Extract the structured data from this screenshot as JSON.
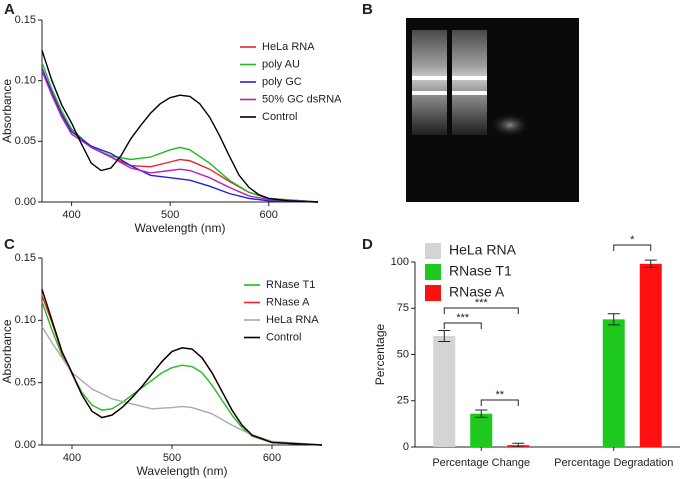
{
  "panels": [
    "A",
    "B",
    "C",
    "D"
  ],
  "chart_data": [
    {
      "type": "line",
      "xlabel": "Wavelength (nm)",
      "ylabel": "Absorbance",
      "xlim": [
        370,
        650
      ],
      "xticks": [
        400,
        500,
        600
      ],
      "ylim": [
        0,
        0.15
      ],
      "yticks": [
        {
          "value": 0,
          "label": "0.00"
        },
        0.05,
        {
          "value": 0.1,
          "label": "0.10"
        },
        0.15
      ],
      "legend": "upper right",
      "series": [
        {
          "name": "HeLa RNA",
          "color": "#e8262a",
          "x": [
            370,
            380,
            390,
            400,
            420,
            440,
            460,
            480,
            500,
            510,
            520,
            540,
            560,
            580,
            600,
            650
          ],
          "values": [
            0.11,
            0.09,
            0.073,
            0.06,
            0.045,
            0.037,
            0.03,
            0.029,
            0.033,
            0.035,
            0.034,
            0.027,
            0.017,
            0.008,
            0.003,
            0
          ]
        },
        {
          "name": "poly AU",
          "color": "#22bb22",
          "x": [
            370,
            380,
            390,
            400,
            420,
            440,
            460,
            480,
            500,
            510,
            520,
            540,
            560,
            580,
            600,
            650
          ],
          "values": [
            0.115,
            0.093,
            0.075,
            0.06,
            0.045,
            0.038,
            0.035,
            0.037,
            0.043,
            0.045,
            0.043,
            0.032,
            0.018,
            0.008,
            0.003,
            0
          ]
        },
        {
          "name": "poly GC",
          "color": "#2222dd",
          "x": [
            370,
            380,
            390,
            400,
            420,
            440,
            460,
            480,
            500,
            520,
            540,
            560,
            580,
            600,
            650
          ],
          "values": [
            0.11,
            0.09,
            0.072,
            0.058,
            0.046,
            0.04,
            0.03,
            0.022,
            0.02,
            0.018,
            0.013,
            0.007,
            0.003,
            0.001,
            0
          ]
        },
        {
          "name": "50% GC dsRNA",
          "color": "#b620c0",
          "x": [
            370,
            380,
            390,
            400,
            420,
            440,
            460,
            480,
            500,
            510,
            520,
            540,
            560,
            580,
            600,
            650
          ],
          "values": [
            0.108,
            0.088,
            0.07,
            0.056,
            0.045,
            0.037,
            0.028,
            0.024,
            0.026,
            0.027,
            0.026,
            0.02,
            0.012,
            0.005,
            0.002,
            0
          ]
        },
        {
          "name": "Control",
          "color": "#000000",
          "x": [
            370,
            380,
            390,
            400,
            410,
            420,
            430,
            440,
            450,
            460,
            470,
            480,
            490,
            500,
            510,
            520,
            530,
            540,
            550,
            560,
            570,
            580,
            590,
            600,
            620,
            650
          ],
          "values": [
            0.125,
            0.1,
            0.08,
            0.065,
            0.048,
            0.032,
            0.026,
            0.028,
            0.038,
            0.052,
            0.063,
            0.073,
            0.081,
            0.086,
            0.088,
            0.087,
            0.081,
            0.07,
            0.055,
            0.038,
            0.022,
            0.012,
            0.006,
            0.003,
            0.001,
            0
          ]
        }
      ]
    },
    {
      "type": "line",
      "xlabel": "Wavelength (nm)",
      "ylabel": "Absorbance",
      "xlim": [
        370,
        650
      ],
      "xticks": [
        400,
        500,
        600
      ],
      "ylim": [
        0,
        0.15
      ],
      "yticks": [
        {
          "value": 0,
          "label": "0.00"
        },
        0.05,
        {
          "value": 0.1,
          "label": "0.10"
        },
        0.15
      ],
      "legend": "upper right",
      "series": [
        {
          "name": "RNase T1",
          "color": "#22bb22",
          "x": [
            370,
            380,
            390,
            400,
            410,
            420,
            430,
            440,
            450,
            460,
            470,
            480,
            490,
            500,
            510,
            520,
            530,
            540,
            550,
            560,
            570,
            580,
            600,
            650
          ],
          "values": [
            0.115,
            0.092,
            0.072,
            0.057,
            0.042,
            0.032,
            0.028,
            0.029,
            0.034,
            0.04,
            0.046,
            0.052,
            0.058,
            0.062,
            0.064,
            0.063,
            0.058,
            0.048,
            0.036,
            0.024,
            0.014,
            0.007,
            0.002,
            0
          ]
        },
        {
          "name": "RNase A",
          "color": "#e8262a",
          "x": [
            370,
            380,
            390,
            400,
            410,
            420,
            430,
            440,
            450,
            460,
            470,
            480,
            490,
            500,
            510,
            520,
            530,
            540,
            550,
            560,
            570,
            580,
            600,
            650
          ],
          "values": [
            0.12,
            0.098,
            0.074,
            0.057,
            0.04,
            0.027,
            0.022,
            0.024,
            0.03,
            0.038,
            0.047,
            0.057,
            0.067,
            0.075,
            0.078,
            0.077,
            0.07,
            0.058,
            0.043,
            0.028,
            0.016,
            0.008,
            0.002,
            0
          ]
        },
        {
          "name": "HeLa RNA",
          "color": "#aaaaaa",
          "x": [
            370,
            380,
            390,
            400,
            420,
            440,
            460,
            480,
            500,
            510,
            520,
            540,
            560,
            580,
            600,
            650
          ],
          "values": [
            0.095,
            0.082,
            0.07,
            0.058,
            0.045,
            0.037,
            0.033,
            0.029,
            0.03,
            0.031,
            0.03,
            0.025,
            0.016,
            0.008,
            0.003,
            0
          ]
        },
        {
          "name": "Control",
          "color": "#000000",
          "x": [
            370,
            380,
            390,
            400,
            410,
            420,
            430,
            440,
            450,
            460,
            470,
            480,
            490,
            500,
            510,
            520,
            530,
            540,
            550,
            560,
            570,
            580,
            600,
            650
          ],
          "values": [
            0.125,
            0.1,
            0.075,
            0.058,
            0.04,
            0.027,
            0.022,
            0.024,
            0.03,
            0.038,
            0.047,
            0.057,
            0.067,
            0.075,
            0.078,
            0.077,
            0.07,
            0.058,
            0.043,
            0.028,
            0.016,
            0.008,
            0.002,
            0
          ]
        }
      ]
    },
    {
      "type": "bar",
      "ylabel": "Percentage",
      "categories": [
        "Percentage Change",
        "Percentage Degradation"
      ],
      "ylim": [
        0,
        100
      ],
      "yticks": [
        0,
        25,
        50,
        75,
        100
      ],
      "legend": "upper left",
      "series": [
        {
          "name": "HeLa RNA",
          "color": "#d4d4d4",
          "values": [
            60,
            null
          ],
          "errors": [
            3,
            null
          ]
        },
        {
          "name": "RNase T1",
          "color": "#1ec81e",
          "values": [
            18,
            69
          ],
          "errors": [
            2,
            3
          ]
        },
        {
          "name": "RNase A",
          "color": "#ff1010",
          "values": [
            1,
            99
          ],
          "errors": [
            1,
            2
          ]
        }
      ],
      "annotations": [
        "***",
        "***",
        "**",
        "*"
      ]
    }
  ]
}
